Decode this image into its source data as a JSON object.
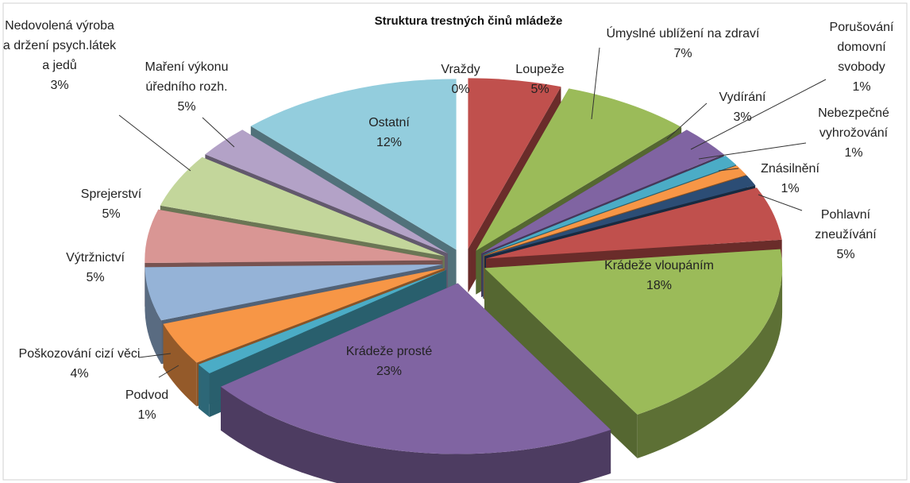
{
  "chart_data": {
    "type": "pie3d",
    "title": "Struktura trestných činů mládeže",
    "categories": [
      "Vraždy",
      "Loupeže",
      "Úmyslné ublížení na zdraví",
      "Vydírání",
      "Porušování domovní svobody",
      "Nebezpečné vyhrožování",
      "Znásilnění",
      "Pohlavní zneužívání",
      "Krádeže vloupáním",
      "Krádeže prosté",
      "Podvod",
      "Poškozování cizí věci",
      "Výtržnictví",
      "Sprejerství",
      "Maření výkonu úředního rozh.",
      "Nedovolená výroba a držení psych.látek a jedů",
      "Ostatní"
    ],
    "values": [
      0,
      5,
      7,
      3,
      1,
      1,
      1,
      5,
      18,
      23,
      1,
      4,
      5,
      5,
      5,
      3,
      12
    ],
    "value_labels": [
      "0%",
      "5%",
      "7%",
      "3%",
      "1%",
      "1%",
      "1%",
      "5%",
      "18%",
      "23%",
      "1%",
      "4%",
      "5%",
      "5%",
      "5%",
      "3%",
      "12%"
    ],
    "colors": [
      "#4f81bd",
      "#c0504d",
      "#9bbb59",
      "#8064a2",
      "#4bacc6",
      "#f79646",
      "#2c4d75",
      "#c0504d",
      "#9bbb59",
      "#8064a2",
      "#4bacc6",
      "#f79646",
      "#95b3d7",
      "#d99694",
      "#c3d69b",
      "#b3a2c7",
      "#93cddd"
    ]
  }
}
